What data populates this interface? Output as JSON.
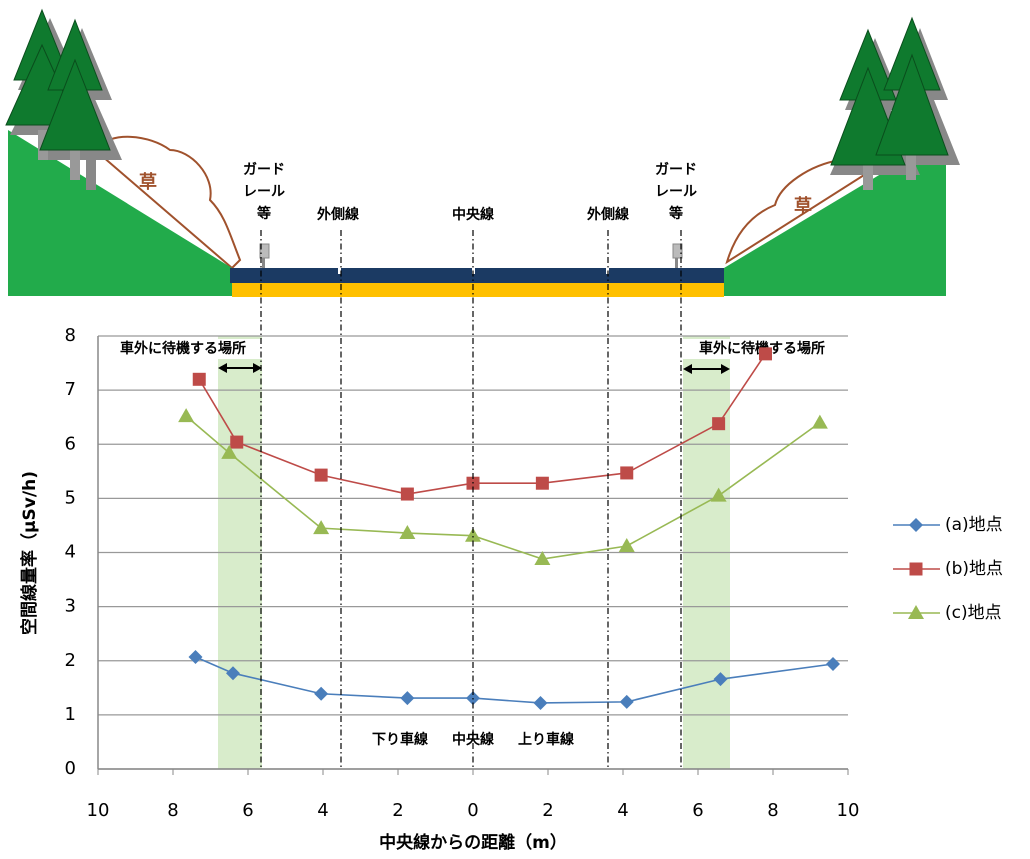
{
  "chart_data": {
    "type": "line",
    "xlabel": "中央線からの距離（m）",
    "ylabel": "空間線量率（μSv/h)",
    "xlim": [
      -10,
      10
    ],
    "xticks": [
      {
        "value": -10,
        "label": "10"
      },
      {
        "value": -8,
        "label": "8"
      },
      {
        "value": -6,
        "label": "6"
      },
      {
        "value": -4,
        "label": "4"
      },
      {
        "value": -2,
        "label": "2"
      },
      0,
      2,
      4,
      6,
      8,
      10
    ],
    "ylim": [
      0,
      8
    ],
    "yticks": [
      0,
      1,
      2,
      3,
      4,
      5,
      6,
      7,
      8
    ],
    "grid": true,
    "legend": "right",
    "series": [
      {
        "name": "(a)地点",
        "color": "#4a7ebb",
        "marker": "diamond",
        "x": [
          -7.4,
          -6.4,
          -4.05,
          -1.75,
          0,
          1.8,
          4.1,
          6.6,
          9.6
        ],
        "values": [
          2.07,
          1.77,
          1.39,
          1.31,
          1.31,
          1.22,
          1.24,
          1.66,
          1.94
        ]
      },
      {
        "name": "(b)地点",
        "color": "#be4b48",
        "marker": "square",
        "x": [
          -7.3,
          -6.3,
          -4.05,
          -1.75,
          0,
          1.85,
          4.1,
          6.55,
          7.8
        ],
        "values": [
          7.2,
          6.04,
          5.43,
          5.08,
          5.28,
          5.28,
          5.47,
          6.38,
          7.67
        ]
      },
      {
        "name": "(c)地点",
        "color": "#98b954",
        "marker": "triangle",
        "x": [
          -7.65,
          -6.5,
          -4.05,
          -1.75,
          0,
          1.85,
          4.1,
          6.55,
          9.25
        ],
        "values": [
          6.52,
          5.84,
          4.45,
          4.36,
          4.31,
          3.88,
          4.12,
          5.05,
          6.4
        ]
      }
    ],
    "annotations": [
      "車外に待機する場所",
      "車外に待機する場所",
      "下り車線",
      "中央線",
      "上り車線"
    ]
  },
  "illustration": {
    "labels": [
      [
        "ガード",
        "レール",
        "等"
      ],
      "外側線",
      "中央線",
      "外側線",
      [
        "ガード",
        "レール",
        "等"
      ],
      "草",
      "草"
    ]
  }
}
